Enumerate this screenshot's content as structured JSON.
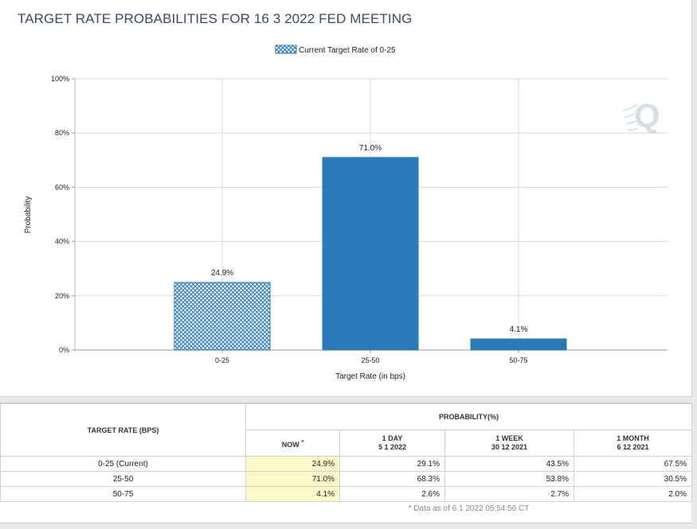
{
  "page_title": "TARGET RATE PROBABILITIES FOR 16 3 2022 FED MEETING",
  "chart_data": {
    "type": "bar",
    "title": "TARGET RATE PROBABILITIES FOR 16 3 2022 FED MEETING",
    "legend": {
      "label": "Current Target Rate of 0-25",
      "placement": "top-center"
    },
    "categories": [
      "0-25",
      "25-50",
      "50-75"
    ],
    "values": [
      24.9,
      71.0,
      4.1
    ],
    "data_labels": [
      "24.9%",
      "71.0%",
      "4.1%"
    ],
    "current_category": "0-25",
    "xlabel": "Target Rate (in bps)",
    "ylabel": "Probability",
    "ylim": [
      0,
      100
    ],
    "yticks": [
      "0%",
      "20%",
      "40%",
      "60%",
      "80%",
      "100%"
    ],
    "grid": true,
    "colors": {
      "bar": "#2a7ab8",
      "current_hatch": "#2a7ab8",
      "grid": "#d9d9d9"
    }
  },
  "table": {
    "left_header": "TARGET RATE (BPS)",
    "prob_header": "PROBABILITY(%)",
    "columns": [
      {
        "label": "NOW",
        "sup": "*",
        "date": ""
      },
      {
        "label": "1 DAY",
        "date": "5 1 2022"
      },
      {
        "label": "1 WEEK",
        "date": "30 12 2021"
      },
      {
        "label": "1 MONTH",
        "date": "6 12 2021"
      }
    ],
    "rows": [
      {
        "target": "0-25 (Current)",
        "values": [
          "24.9%",
          "29.1%",
          "43.5%",
          "67.5%"
        ]
      },
      {
        "target": "25-50",
        "values": [
          "71.0%",
          "68.3%",
          "53.8%",
          "30.5%"
        ]
      },
      {
        "target": "50-75",
        "values": [
          "4.1%",
          "2.6%",
          "2.7%",
          "2.0%"
        ]
      }
    ],
    "footnote": "* Data as of 6 1 2022 05:54:56 CT"
  }
}
